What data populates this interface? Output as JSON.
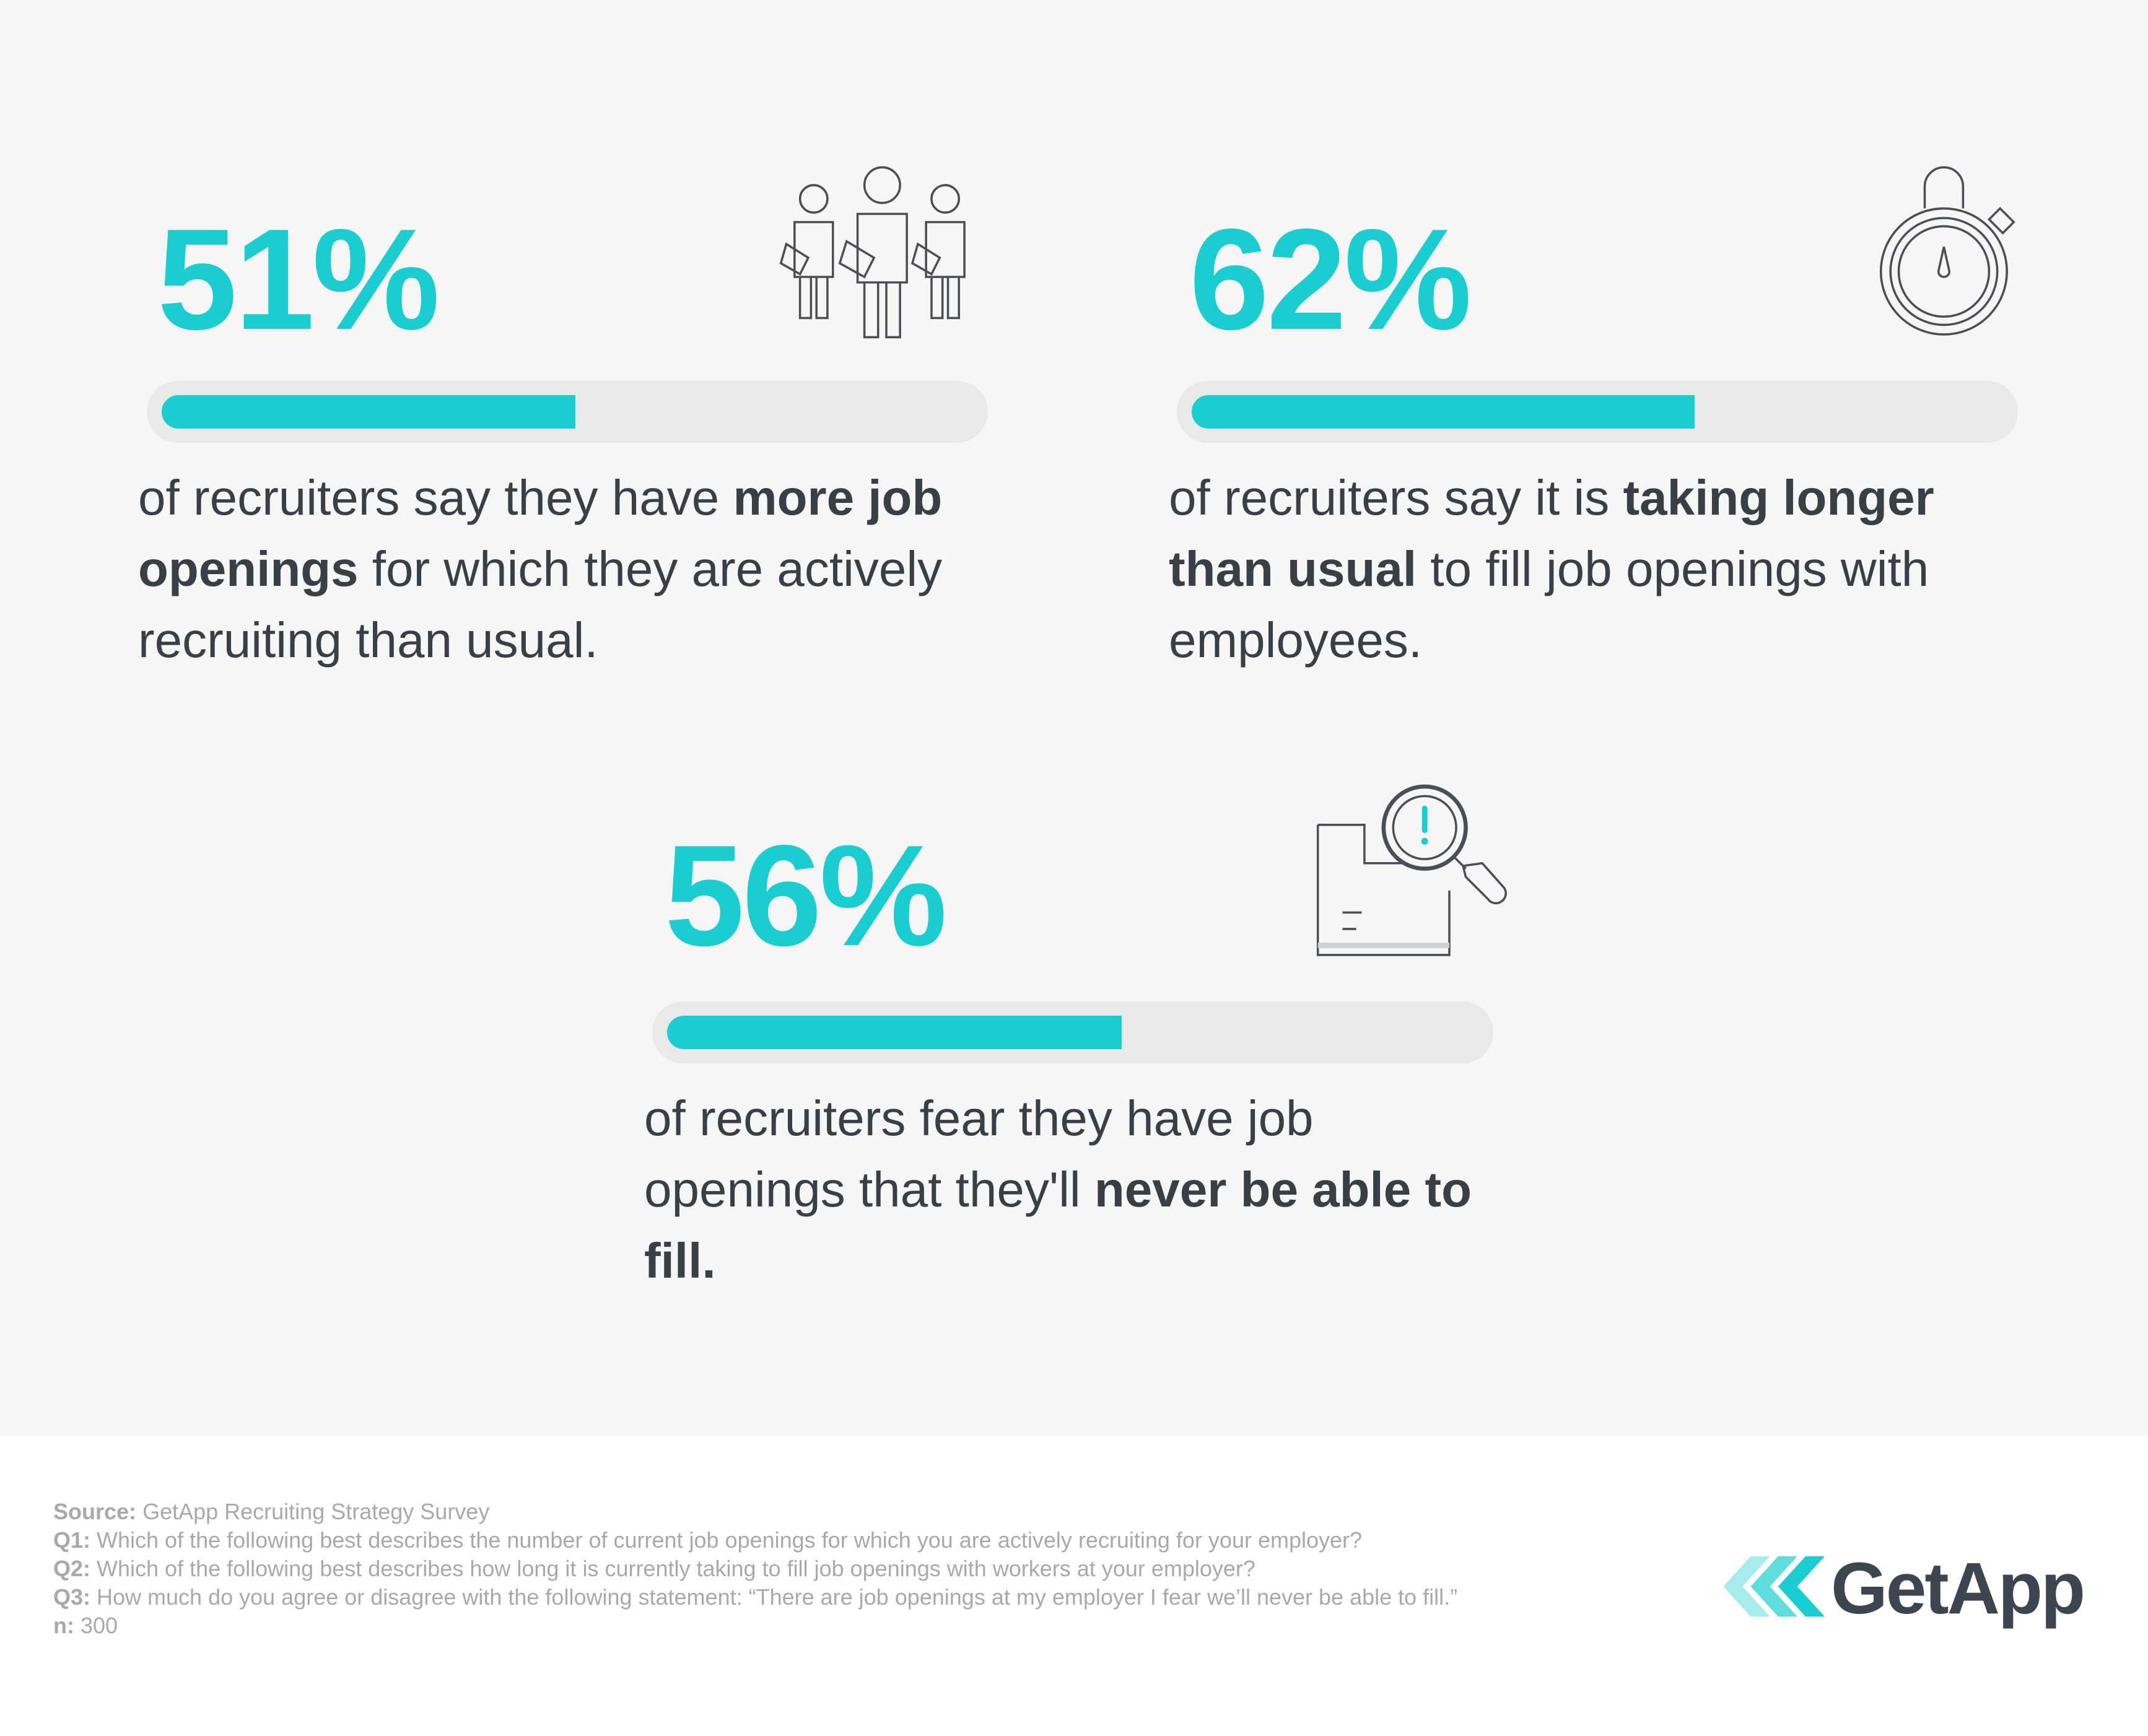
{
  "stats": [
    {
      "value": 51,
      "label": "51%",
      "text": [
        {
          "t": "of recruiters say they have "
        },
        {
          "t": "more job openings",
          "bold": true
        },
        {
          "t": " for which they are actively recruiting than usual."
        }
      ]
    },
    {
      "value": 62,
      "label": "62%",
      "text": [
        {
          "t": "of recruiters say it is "
        },
        {
          "t": "taking longer than usual",
          "bold": true
        },
        {
          "t": " to fill job openings with employees."
        }
      ]
    },
    {
      "value": 56,
      "label": "56%",
      "text": [
        {
          "t": "of recruiters fear they have job openings that they'll "
        },
        {
          "t": "never be able to fill.",
          "bold": true
        }
      ]
    }
  ],
  "footer": [
    {
      "label": "Source:",
      "text": "GetApp Recruiting Strategy Survey"
    },
    {
      "label": "Q1:",
      "text": "Which of the following best describes the number of current job openings for which you are actively recruiting for your employer?"
    },
    {
      "label": "Q2:",
      "text": "Which of the following best describes how long it is currently taking to fill job openings with workers at your employer?"
    },
    {
      "label": "Q3:",
      "text": "How much do you agree or disagree with the following statement: “There are job openings at my employer I fear we’ll never be able to fill.”"
    },
    {
      "label": "n:",
      "text": "300"
    }
  ],
  "logo": "GetApp"
}
